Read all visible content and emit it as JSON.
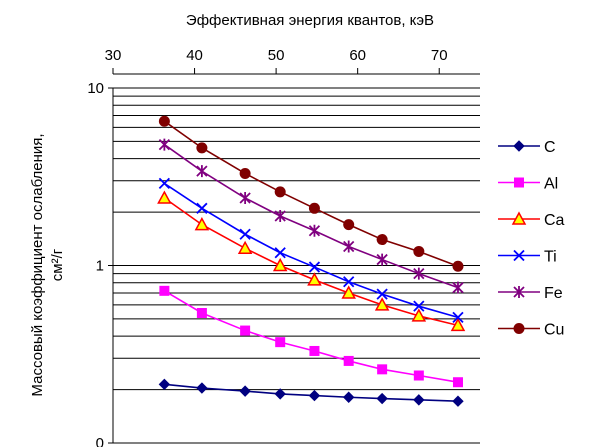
{
  "chart_data": {
    "type": "line",
    "title": "",
    "xlabel": "Эффективная энергия квантов, кэВ",
    "ylabel": "Массовый коэффициент ослабления,",
    "ylabel_unit": "см²/г",
    "x_axis_position": "top",
    "xlim": [
      30,
      75
    ],
    "xticks": [
      30,
      40,
      50,
      60,
      70
    ],
    "yscale": "log",
    "ylim": [
      0.1,
      10
    ],
    "yticks": [
      {
        "value": 10,
        "label": "10"
      },
      {
        "value": 1,
        "label": "1"
      },
      {
        "value": 0.1,
        "label": "0"
      }
    ],
    "grid": "horizontal",
    "legend_position": "right",
    "x": [
      36.3,
      40.9,
      46.2,
      50.5,
      54.7,
      58.9,
      63.0,
      67.5,
      72.3
    ],
    "series": [
      {
        "name": "C",
        "color": "#000080",
        "marker": "diamond",
        "values": [
          0.214,
          0.204,
          0.196,
          0.189,
          0.185,
          0.181,
          0.178,
          0.175,
          0.172
        ]
      },
      {
        "name": "Al",
        "color": "#ff00ff",
        "marker": "square",
        "values": [
          0.72,
          0.54,
          0.43,
          0.37,
          0.33,
          0.29,
          0.26,
          0.24,
          0.22
        ]
      },
      {
        "name": "Ca",
        "color": "#ff0000",
        "marker": "triangle",
        "values": [
          2.4,
          1.7,
          1.25,
          1.0,
          0.83,
          0.7,
          0.6,
          0.52,
          0.46
        ]
      },
      {
        "name": "Ti",
        "color": "#0000ff",
        "marker": "x",
        "values": [
          2.9,
          2.1,
          1.5,
          1.18,
          0.98,
          0.81,
          0.69,
          0.59,
          0.51
        ]
      },
      {
        "name": "Fe",
        "color": "#800080",
        "marker": "asterisk",
        "values": [
          4.8,
          3.4,
          2.4,
          1.9,
          1.57,
          1.28,
          1.08,
          0.9,
          0.75
        ]
      },
      {
        "name": "Cu",
        "color": "#800000",
        "marker": "circle",
        "values": [
          6.5,
          4.6,
          3.3,
          2.6,
          2.1,
          1.7,
          1.4,
          1.2,
          0.99
        ]
      }
    ]
  }
}
